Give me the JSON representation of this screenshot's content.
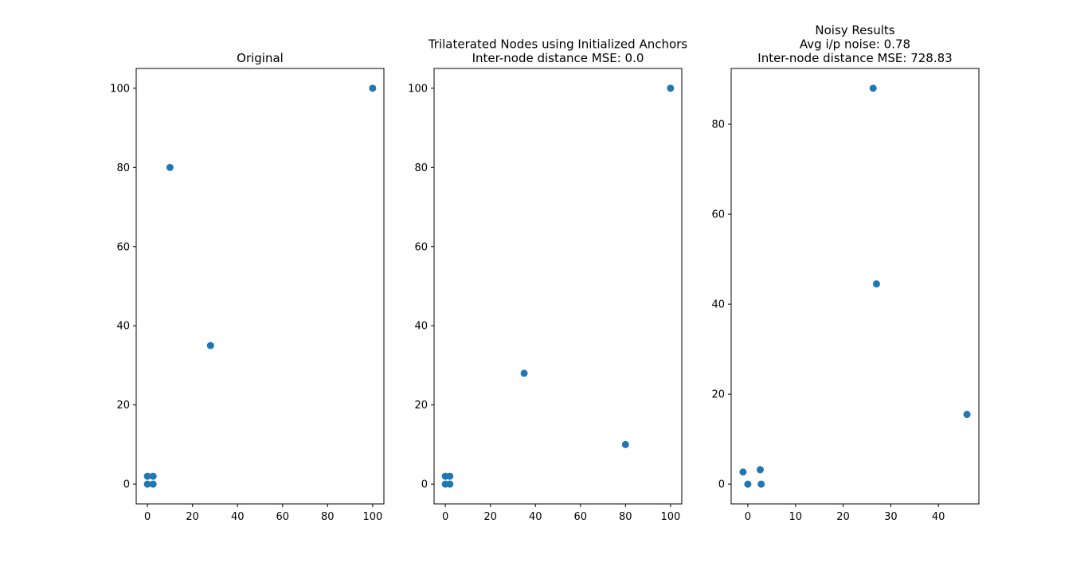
{
  "colors": {
    "marker": "#1f77b4",
    "axis": "#000000",
    "background": "#ffffff"
  },
  "chart_data": [
    {
      "type": "scatter",
      "title_lines": [
        "Original"
      ],
      "xlim": [
        -5,
        105
      ],
      "ylim": [
        -5,
        105
      ],
      "xticks": [
        0,
        20,
        40,
        60,
        80,
        100
      ],
      "yticks": [
        0,
        20,
        40,
        60,
        80,
        100
      ],
      "xlabel": "",
      "ylabel": "",
      "grid": false,
      "series": [
        {
          "x": [
            0,
            0,
            2.5,
            2.5,
            10,
            28,
            100
          ],
          "y": [
            0,
            2,
            0,
            2,
            80,
            35,
            100
          ]
        }
      ]
    },
    {
      "type": "scatter",
      "title_lines": [
        "Trilaterated Nodes using Initialized Anchors",
        "Inter-node distance MSE: 0.0"
      ],
      "xlim": [
        -5,
        105
      ],
      "ylim": [
        -5,
        105
      ],
      "xticks": [
        0,
        20,
        40,
        60,
        80,
        100
      ],
      "yticks": [
        0,
        20,
        40,
        60,
        80,
        100
      ],
      "xlabel": "",
      "ylabel": "",
      "grid": false,
      "series": [
        {
          "x": [
            0,
            0,
            2,
            2,
            35,
            80,
            100
          ],
          "y": [
            0,
            2,
            0,
            2,
            28,
            10,
            100
          ]
        }
      ]
    },
    {
      "type": "scatter",
      "title_lines": [
        "Noisy Results",
        "Avg i/p noise: 0.78",
        "Inter-node distance MSE: 728.83"
      ],
      "xlim": [
        -3.5,
        48.5
      ],
      "ylim": [
        -4.4,
        92.4
      ],
      "xticks": [
        0,
        10,
        20,
        30,
        40
      ],
      "yticks": [
        0,
        20,
        40,
        60,
        80
      ],
      "xlabel": "",
      "ylabel": "",
      "grid": false,
      "series": [
        {
          "x": [
            -1,
            0,
            2.6,
            2.8,
            26.3,
            27,
            46
          ],
          "y": [
            2.7,
            0,
            3.2,
            0,
            88,
            44.5,
            15.5
          ]
        }
      ]
    }
  ]
}
